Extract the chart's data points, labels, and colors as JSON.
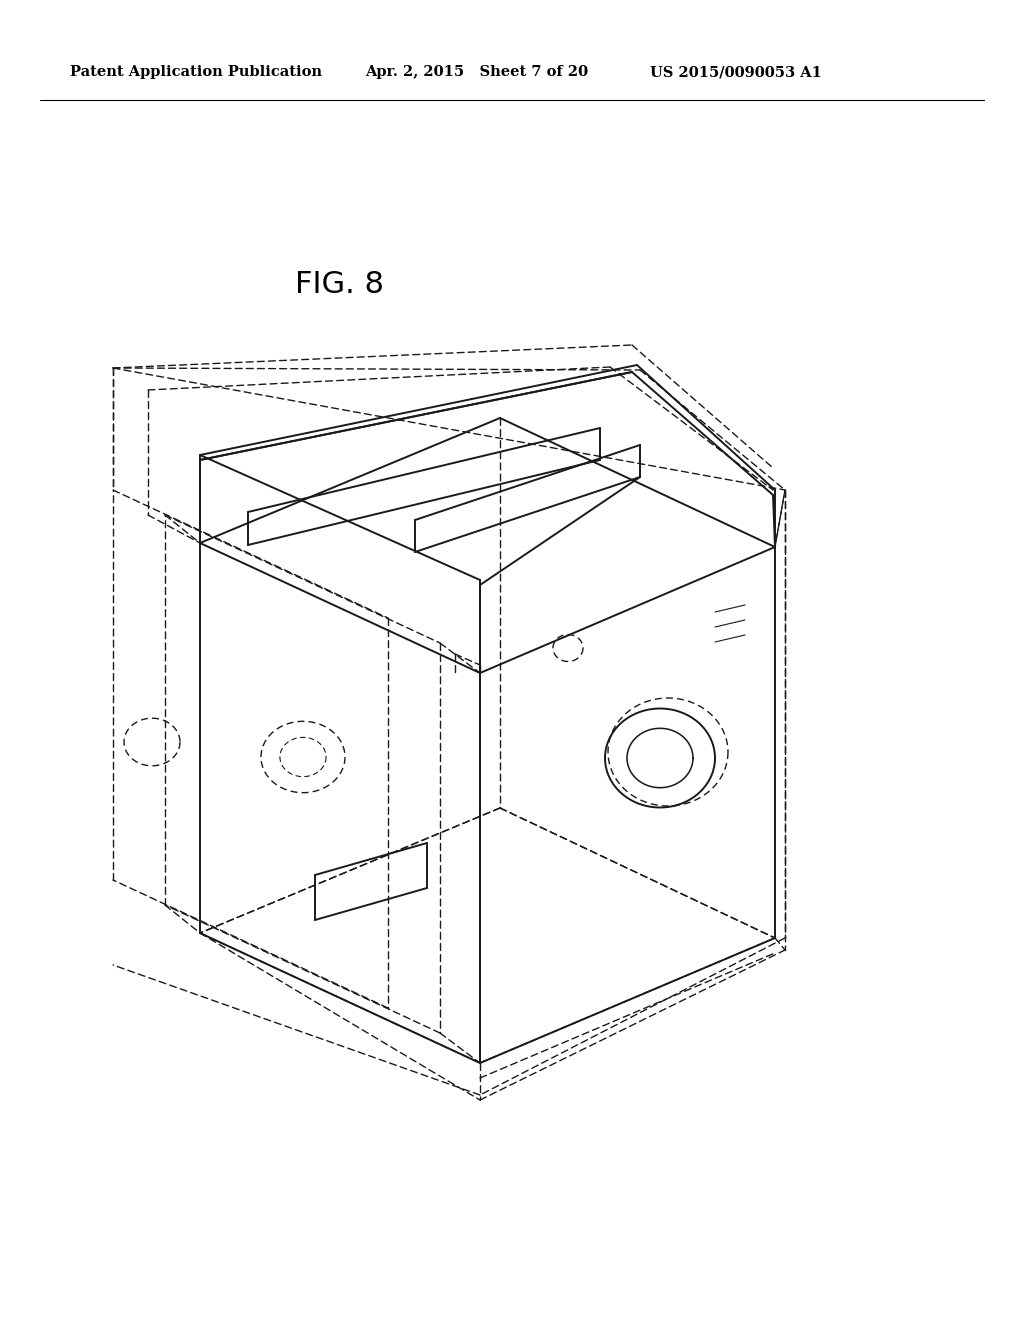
{
  "background_color": "#ffffff",
  "line_color": "#1a1a1a",
  "header_left": "Patent Application Publication",
  "header_mid": "Apr. 2, 2015   Sheet 7 of 20",
  "header_right": "US 2015/0090053 A1",
  "fig_label": "FIG. 8",
  "fig_label_fontsize": 22,
  "lw_solid": 1.4,
  "lw_dashed": 1.0,
  "dash_seq": [
    5,
    3
  ]
}
